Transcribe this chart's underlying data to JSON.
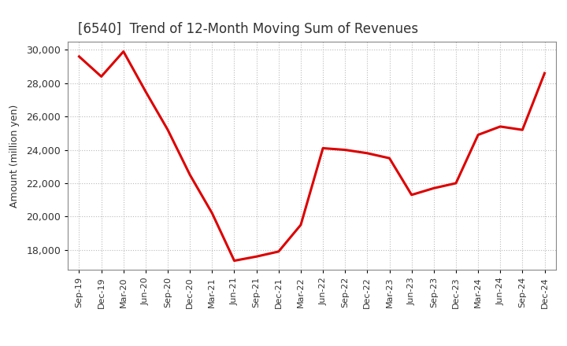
{
  "title": "[6540]  Trend of 12-Month Moving Sum of Revenues",
  "ylabel": "Amount (million yen)",
  "line_color": "#dd0000",
  "background_color": "#ffffff",
  "grid_color": "#bbbbbb",
  "ylim": [
    16800,
    30500
  ],
  "yticks": [
    18000,
    20000,
    22000,
    24000,
    26000,
    28000,
    30000
  ],
  "x_labels": [
    "Sep-19",
    "Dec-19",
    "Mar-20",
    "Jun-20",
    "Sep-20",
    "Dec-20",
    "Mar-21",
    "Jun-21",
    "Sep-21",
    "Dec-21",
    "Mar-22",
    "Jun-22",
    "Sep-22",
    "Dec-22",
    "Mar-23",
    "Jun-23",
    "Sep-23",
    "Dec-23",
    "Mar-24",
    "Jun-24",
    "Sep-24",
    "Dec-24"
  ],
  "values": [
    29600,
    28400,
    29900,
    27500,
    25200,
    22500,
    20200,
    17350,
    17600,
    17900,
    19500,
    24100,
    24000,
    23800,
    23500,
    21300,
    21700,
    22000,
    24900,
    25400,
    25200,
    28600
  ]
}
